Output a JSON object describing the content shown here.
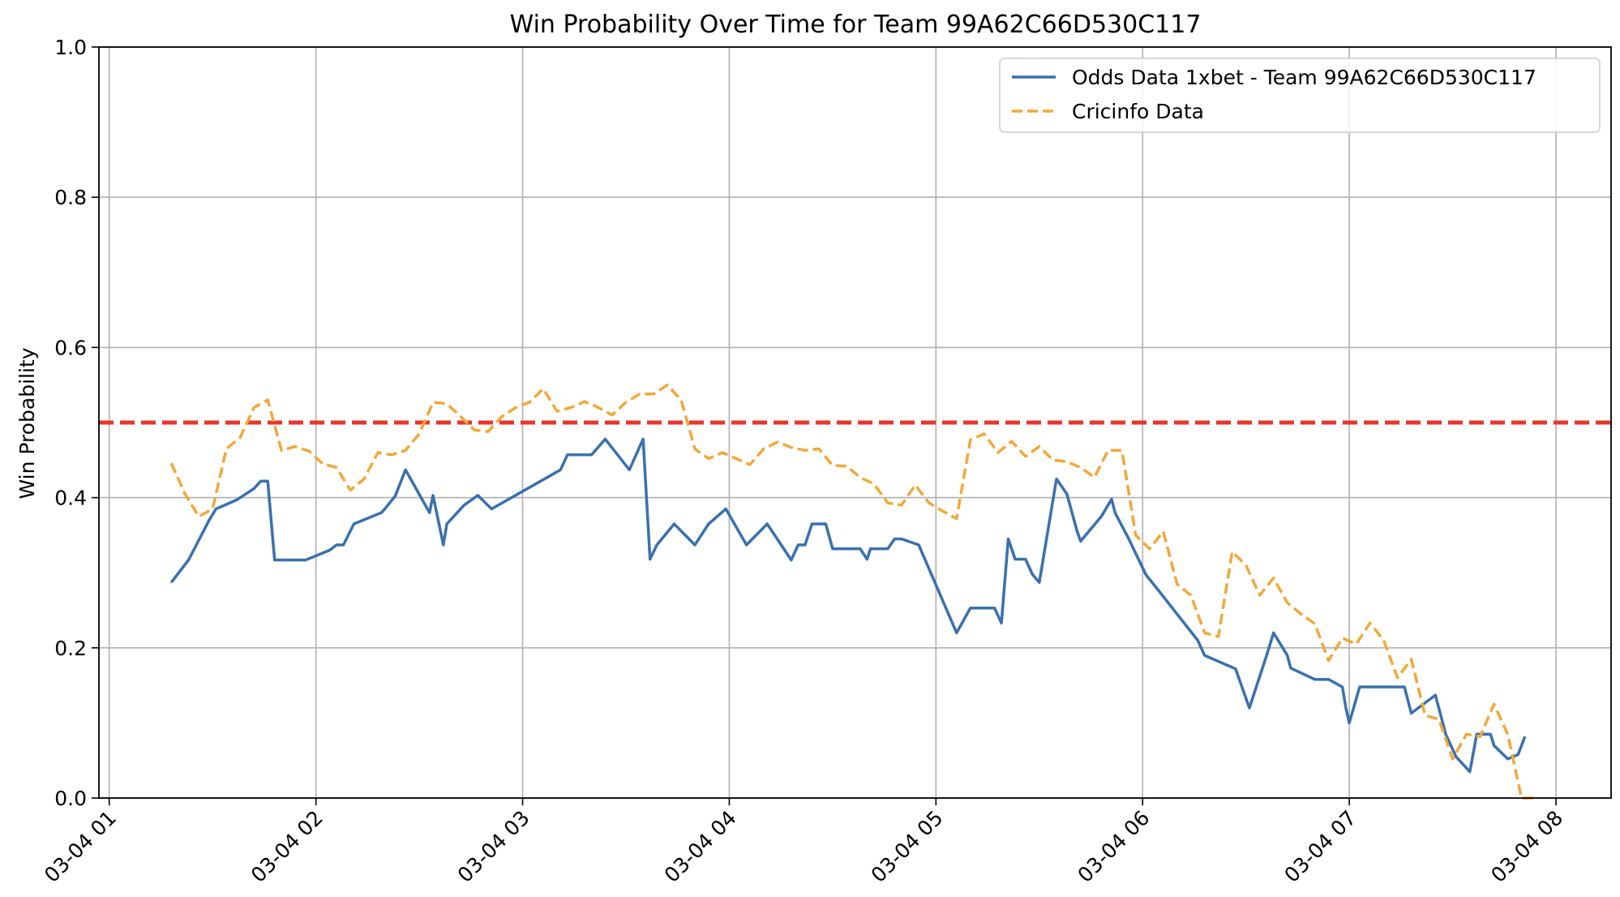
{
  "chart_data": {
    "type": "line",
    "title": "Win Probability Over Time for Team 99A62C66D530C117",
    "xlabel": "",
    "ylabel": "Win Probability",
    "xlim": [
      "03-04 00:57",
      "03-04 08:16"
    ],
    "ylim": [
      0.0,
      1.0
    ],
    "x_ticks": [
      "03-04 01",
      "03-04 02",
      "03-04 03",
      "03-04 04",
      "03-04 05",
      "03-04 06",
      "03-04 07",
      "03-04 08"
    ],
    "y_ticks": [
      "0.0",
      "0.2",
      "0.4",
      "0.6",
      "0.8",
      "1.0"
    ],
    "grid": true,
    "legend_position": "top-right",
    "reference_line": {
      "y": 0.5,
      "color": "#e8352b",
      "style": "dashed"
    },
    "series": [
      {
        "name": "Odds Data 1xbet - Team 99A62C66D530C117",
        "color": "#3a70ad",
        "style": "solid",
        "points": [
          [
            "03-04 01:18",
            0.287
          ],
          [
            "03-04 01:23",
            0.317
          ],
          [
            "03-04 01:29",
            0.37
          ],
          [
            "03-04 01:31",
            0.385
          ],
          [
            "03-04 01:37",
            0.397
          ],
          [
            "03-04 01:39",
            0.403
          ],
          [
            "03-04 01:42",
            0.412
          ],
          [
            "03-04 01:44",
            0.422
          ],
          [
            "03-04 01:46",
            0.422
          ],
          [
            "03-04 01:48",
            0.317
          ],
          [
            "03-04 01:57",
            0.317
          ],
          [
            "03-04 02:04",
            0.33
          ],
          [
            "03-04 02:06",
            0.337
          ],
          [
            "03-04 02:08",
            0.337
          ],
          [
            "03-04 02:11",
            0.365
          ],
          [
            "03-04 02:19",
            0.38
          ],
          [
            "03-04 02:20",
            0.385
          ],
          [
            "03-04 02:23",
            0.402
          ],
          [
            "03-04 02:26",
            0.437
          ],
          [
            "03-04 02:33",
            0.38
          ],
          [
            "03-04 02:34",
            0.403
          ],
          [
            "03-04 02:37",
            0.337
          ],
          [
            "03-04 02:38",
            0.365
          ],
          [
            "03-04 02:43",
            0.39
          ],
          [
            "03-04 02:47",
            0.403
          ],
          [
            "03-04 02:51",
            0.385
          ],
          [
            "03-04 03:11",
            0.437
          ],
          [
            "03-04 03:13",
            0.457
          ],
          [
            "03-04 03:20",
            0.457
          ],
          [
            "03-04 03:24",
            0.478
          ],
          [
            "03-04 03:31",
            0.437
          ],
          [
            "03-04 03:35",
            0.478
          ],
          [
            "03-04 03:37",
            0.318
          ],
          [
            "03-04 03:39",
            0.337
          ],
          [
            "03-04 03:44",
            0.365
          ],
          [
            "03-04 03:50",
            0.337
          ],
          [
            "03-04 03:54",
            0.365
          ],
          [
            "03-04 03:59",
            0.385
          ],
          [
            "03-04 04:05",
            0.337
          ],
          [
            "03-04 04:11",
            0.365
          ],
          [
            "03-04 04:18",
            0.317
          ],
          [
            "03-04 04:20",
            0.337
          ],
          [
            "03-04 04:22",
            0.337
          ],
          [
            "03-04 04:24",
            0.365
          ],
          [
            "03-04 04:28",
            0.365
          ],
          [
            "03-04 04:30",
            0.332
          ],
          [
            "03-04 04:38",
            0.332
          ],
          [
            "03-04 04:40",
            0.318
          ],
          [
            "03-04 04:41",
            0.332
          ],
          [
            "03-04 04:46",
            0.332
          ],
          [
            "03-04 04:48",
            0.345
          ],
          [
            "03-04 04:50",
            0.345
          ],
          [
            "03-04 04:55",
            0.337
          ],
          [
            "03-04 05:06",
            0.22
          ],
          [
            "03-04 05:10",
            0.253
          ],
          [
            "03-04 05:17",
            0.253
          ],
          [
            "03-04 05:19",
            0.233
          ],
          [
            "03-04 05:21",
            0.345
          ],
          [
            "03-04 05:23",
            0.318
          ],
          [
            "03-04 05:26",
            0.318
          ],
          [
            "03-04 05:28",
            0.298
          ],
          [
            "03-04 05:30",
            0.287
          ],
          [
            "03-04 05:35",
            0.425
          ],
          [
            "03-04 05:38",
            0.405
          ],
          [
            "03-04 05:41",
            0.355
          ],
          [
            "03-04 05:42",
            0.342
          ],
          [
            "03-04 05:48",
            0.375
          ],
          [
            "03-04 05:51",
            0.398
          ],
          [
            "03-04 05:52",
            0.38
          ],
          [
            "03-04 05:56",
            0.345
          ],
          [
            "03-04 06:01",
            0.297
          ],
          [
            "03-04 06:04",
            0.28
          ],
          [
            "03-04 06:16",
            0.21
          ],
          [
            "03-04 06:18",
            0.19
          ],
          [
            "03-04 06:27",
            0.172
          ],
          [
            "03-04 06:31",
            0.12
          ],
          [
            "03-04 06:36",
            0.19
          ],
          [
            "03-04 06:38",
            0.22
          ],
          [
            "03-04 06:42",
            0.19
          ],
          [
            "03-04 06:43",
            0.173
          ],
          [
            "03-04 06:50",
            0.158
          ],
          [
            "03-04 06:54",
            0.158
          ],
          [
            "03-04 06:58",
            0.148
          ],
          [
            "03-04 06:59",
            0.12
          ],
          [
            "03-04 07:00",
            0.1
          ],
          [
            "03-04 07:03",
            0.148
          ],
          [
            "03-04 07:16",
            0.148
          ],
          [
            "03-04 07:18",
            0.113
          ],
          [
            "03-04 07:25",
            0.137
          ],
          [
            "03-04 07:28",
            0.085
          ],
          [
            "03-04 07:31",
            0.055
          ],
          [
            "03-04 07:35",
            0.035
          ],
          [
            "03-04 07:37",
            0.085
          ],
          [
            "03-04 07:41",
            0.085
          ],
          [
            "03-04 07:42",
            0.07
          ],
          [
            "03-04 07:46",
            0.052
          ],
          [
            "03-04 07:49",
            0.058
          ],
          [
            "03-04 07:51",
            0.082
          ]
        ]
      },
      {
        "name": "Cricinfo Data",
        "color": "#f2a83a",
        "style": "dashed",
        "points": [
          [
            "03-04 01:18",
            0.446
          ],
          [
            "03-04 01:22",
            0.405
          ],
          [
            "03-04 01:26",
            0.375
          ],
          [
            "03-04 01:30",
            0.385
          ],
          [
            "03-04 01:34",
            0.465
          ],
          [
            "03-04 01:38",
            0.48
          ],
          [
            "03-04 01:42",
            0.52
          ],
          [
            "03-04 01:46",
            0.53
          ],
          [
            "03-04 01:50",
            0.463
          ],
          [
            "03-04 01:54",
            0.468
          ],
          [
            "03-04 01:58",
            0.462
          ],
          [
            "03-04 02:02",
            0.445
          ],
          [
            "03-04 02:06",
            0.44
          ],
          [
            "03-04 02:10",
            0.41
          ],
          [
            "03-04 02:14",
            0.425
          ],
          [
            "03-04 02:18",
            0.46
          ],
          [
            "03-04 02:22",
            0.457
          ],
          [
            "03-04 02:26",
            0.463
          ],
          [
            "03-04 02:30",
            0.485
          ],
          [
            "03-04 02:34",
            0.527
          ],
          [
            "03-04 02:38",
            0.525
          ],
          [
            "03-04 02:42",
            0.508
          ],
          [
            "03-04 02:46",
            0.49
          ],
          [
            "03-04 02:50",
            0.488
          ],
          [
            "03-04 02:54",
            0.508
          ],
          [
            "03-04 02:58",
            0.52
          ],
          [
            "03-04 03:02",
            0.527
          ],
          [
            "03-04 03:06",
            0.545
          ],
          [
            "03-04 03:10",
            0.515
          ],
          [
            "03-04 03:14",
            0.52
          ],
          [
            "03-04 03:18",
            0.528
          ],
          [
            "03-04 03:22",
            0.52
          ],
          [
            "03-04 03:26",
            0.51
          ],
          [
            "03-04 03:30",
            0.527
          ],
          [
            "03-04 03:34",
            0.538
          ],
          [
            "03-04 03:38",
            0.538
          ],
          [
            "03-04 03:42",
            0.55
          ],
          [
            "03-04 03:46",
            0.53
          ],
          [
            "03-04 03:50",
            0.465
          ],
          [
            "03-04 03:54",
            0.452
          ],
          [
            "03-04 03:58",
            0.46
          ],
          [
            "03-04 04:02",
            0.452
          ],
          [
            "03-04 04:06",
            0.444
          ],
          [
            "03-04 04:10",
            0.465
          ],
          [
            "03-04 04:14",
            0.474
          ],
          [
            "03-04 04:18",
            0.467
          ],
          [
            "03-04 04:22",
            0.463
          ],
          [
            "03-04 04:26",
            0.465
          ],
          [
            "03-04 04:30",
            0.443
          ],
          [
            "03-04 04:34",
            0.442
          ],
          [
            "03-04 04:38",
            0.427
          ],
          [
            "03-04 04:42",
            0.418
          ],
          [
            "03-04 04:46",
            0.393
          ],
          [
            "03-04 04:50",
            0.39
          ],
          [
            "03-04 04:54",
            0.417
          ],
          [
            "03-04 04:58",
            0.393
          ],
          [
            "03-04 05:02",
            0.382
          ],
          [
            "03-04 05:06",
            0.372
          ],
          [
            "03-04 05:10",
            0.477
          ],
          [
            "03-04 05:14",
            0.485
          ],
          [
            "03-04 05:18",
            0.46
          ],
          [
            "03-04 05:22",
            0.475
          ],
          [
            "03-04 05:26",
            0.455
          ],
          [
            "03-04 05:30",
            0.468
          ],
          [
            "03-04 05:34",
            0.45
          ],
          [
            "03-04 05:38",
            0.448
          ],
          [
            "03-04 05:42",
            0.44
          ],
          [
            "03-04 05:46",
            0.427
          ],
          [
            "03-04 05:50",
            0.463
          ],
          [
            "03-04 05:54",
            0.463
          ],
          [
            "03-04 05:58",
            0.35
          ],
          [
            "03-04 06:02",
            0.332
          ],
          [
            "03-04 06:06",
            0.355
          ],
          [
            "03-04 06:10",
            0.285
          ],
          [
            "03-04 06:14",
            0.27
          ],
          [
            "03-04 06:18",
            0.22
          ],
          [
            "03-04 06:22",
            0.215
          ],
          [
            "03-04 06:26",
            0.328
          ],
          [
            "03-04 06:30",
            0.31
          ],
          [
            "03-04 06:34",
            0.27
          ],
          [
            "03-04 06:38",
            0.293
          ],
          [
            "03-04 06:42",
            0.26
          ],
          [
            "03-04 06:46",
            0.245
          ],
          [
            "03-04 06:50",
            0.232
          ],
          [
            "03-04 06:54",
            0.183
          ],
          [
            "03-04 06:58",
            0.213
          ],
          [
            "03-04 07:02",
            0.205
          ],
          [
            "03-04 07:06",
            0.233
          ],
          [
            "03-04 07:10",
            0.21
          ],
          [
            "03-04 07:14",
            0.16
          ],
          [
            "03-04 07:18",
            0.185
          ],
          [
            "03-04 07:22",
            0.11
          ],
          [
            "03-04 07:26",
            0.105
          ],
          [
            "03-04 07:30",
            0.052
          ],
          [
            "03-04 07:34",
            0.085
          ],
          [
            "03-04 07:38",
            0.082
          ],
          [
            "03-04 07:42",
            0.125
          ],
          [
            "03-04 07:46",
            0.085
          ],
          [
            "03-04 07:50",
            0.0
          ],
          [
            "03-04 07:54",
            0.0
          ]
        ]
      }
    ]
  }
}
